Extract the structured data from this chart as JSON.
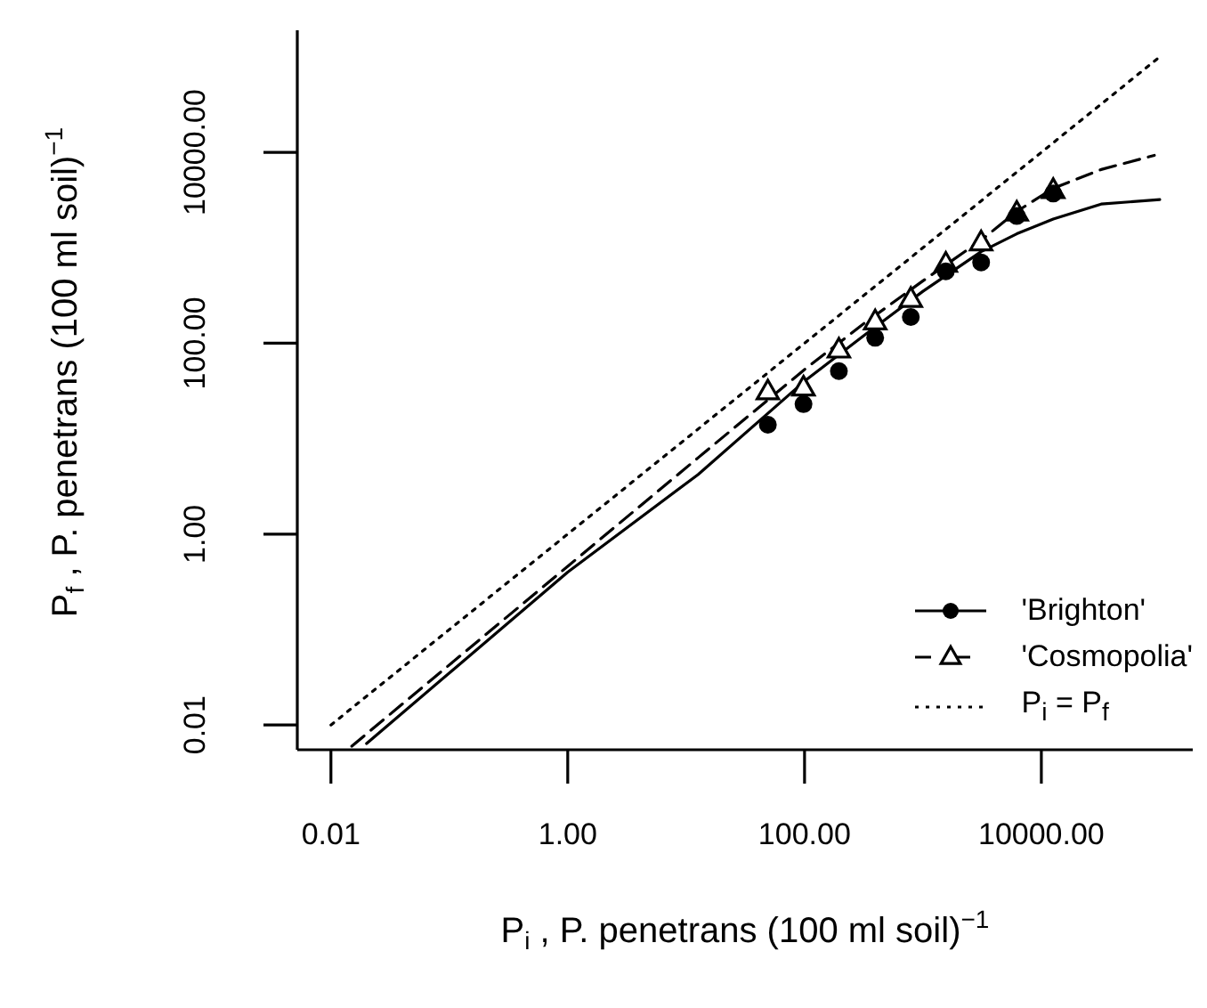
{
  "chart_data": {
    "type": "scatter",
    "xlabel": "P$_{i}$ , P.  penetrans  (100 ml soil)$^{−1}$",
    "ylabel": "P$_{f}$ , P.  penetrans  (100 ml soil)$^{−1}$",
    "log": "xy",
    "xlim": [
      0.0052,
      190000
    ],
    "ylim": [
      0.0055,
      190000
    ],
    "xticks": [
      {
        "value": 0.01,
        "label": "0.01"
      },
      {
        "value": 1,
        "label": "1.00"
      },
      {
        "value": 100,
        "label": "100.00"
      },
      {
        "value": 10000,
        "label": "10000.00"
      }
    ],
    "yticks": [
      {
        "value": 0.01,
        "label": "0.01"
      },
      {
        "value": 1,
        "label": "1.00"
      },
      {
        "value": 100,
        "label": "100.00"
      },
      {
        "value": 10000,
        "label": "10000.00"
      }
    ],
    "legend": "bottom right",
    "series": [
      {
        "type": "line",
        "color": "#000000",
        "line_style": "solid",
        "x": [
          0.02,
          1,
          12.6,
          100,
          316,
          1000,
          3100,
          6200,
          12600,
          32000,
          100000
        ],
        "values": [
          0.0064,
          0.4,
          4.2,
          40,
          120,
          350,
          910,
          1400,
          2000,
          2870,
          3200
        ]
      },
      {
        "type": "line",
        "color": "#000000",
        "line_style": "dashed",
        "x": [
          0.015,
          1,
          12.6,
          100,
          316,
          1000,
          3100,
          6200,
          12600,
          32000,
          90000
        ],
        "values": [
          0.006,
          0.46,
          6.3,
          53,
          160,
          450,
          1200,
          2400,
          4200,
          6600,
          9300
        ]
      },
      {
        "name": "'Brighton'",
        "color": "#000000",
        "marker": "circle",
        "line_style": "solid",
        "x": [
          49,
          98,
          195,
          395,
          790,
          1560,
          3100,
          6200,
          12600
        ],
        "values": [
          14,
          23,
          51,
          114,
          188,
          566,
          703,
          2150,
          3700
        ]
      },
      {
        "name": "'Cosmopolia'",
        "color": "#000000",
        "marker": "triangle",
        "line_style": "dashed",
        "x": [
          49,
          98,
          195,
          395,
          790,
          1560,
          3100,
          6200,
          12600
        ],
        "values": [
          31,
          34,
          85,
          168,
          289,
          675,
          1130,
          2310,
          3990
        ]
      },
      {
        "name": "P$_{i}$ = P$_{f}$",
        "type": "line",
        "color": "#000000",
        "line_style": "dotted",
        "x": [
          0.01,
          100000
        ],
        "values": [
          0.01,
          100000
        ]
      }
    ]
  }
}
